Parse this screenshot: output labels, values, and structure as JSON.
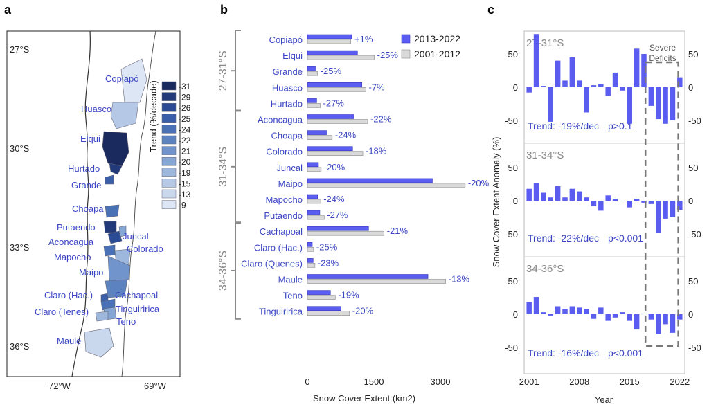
{
  "panels": {
    "a": "a",
    "b": "b",
    "c": "c"
  },
  "colors": {
    "bar_recent": "#5b5cf0",
    "bar_recent_stroke": "#3a3bc0",
    "bar_early": "#d9d9d9",
    "bar_early_stroke": "#8a8a8a",
    "label_blue": "#3b46c4",
    "bracket": "#8a8a8a",
    "map_ocean": "#ffffff"
  },
  "map": {
    "lat_labels": [
      "27°S",
      "30°S",
      "33°S",
      "36°S"
    ],
    "lon_labels": [
      "72°W",
      "69°W"
    ],
    "basins": [
      {
        "name": "Copiapó",
        "trend": -9
      },
      {
        "name": "Huasco",
        "trend": -15
      },
      {
        "name": "Elqui",
        "trend": -31
      },
      {
        "name": "Hurtado",
        "trend": -29
      },
      {
        "name": "Grande",
        "trend": -25
      },
      {
        "name": "Choapa",
        "trend": -24
      },
      {
        "name": "Putaendo",
        "trend": -29
      },
      {
        "name": "Aconcagua",
        "trend": -26
      },
      {
        "name": "Juncal",
        "trend": -20
      },
      {
        "name": "Colorado",
        "trend": -19
      },
      {
        "name": "Mapocho",
        "trend": -24
      },
      {
        "name": "Maipo",
        "trend": -21
      },
      {
        "name": "Claro (Hac.)",
        "trend": -25
      },
      {
        "name": "Cachapoal",
        "trend": -22
      },
      {
        "name": "Claro (Tenes)",
        "trend": -23
      },
      {
        "name": "Tinguiririca",
        "trend": -20
      },
      {
        "name": "Teno",
        "trend": -19
      },
      {
        "name": "Maule",
        "trend": -13
      }
    ],
    "legend": {
      "title": "Trend (%/decade)",
      "entries": [
        {
          "label": "-31",
          "color": "#1b2a5e"
        },
        {
          "label": "-29",
          "color": "#223a7a"
        },
        {
          "label": "-26",
          "color": "#2b4c95"
        },
        {
          "label": "-25",
          "color": "#3a5ea8"
        },
        {
          "label": "-24",
          "color": "#4a70b5"
        },
        {
          "label": "-22",
          "color": "#5c82c0"
        },
        {
          "label": "-21",
          "color": "#7094cb"
        },
        {
          "label": "-20",
          "color": "#86a6d4"
        },
        {
          "label": "-19",
          "color": "#9db7dd"
        },
        {
          "label": "-15",
          "color": "#b5c8e6"
        },
        {
          "label": "-13",
          "color": "#cad8ee"
        },
        {
          "label": "-9",
          "color": "#dde6f5"
        }
      ]
    }
  },
  "chart_data": [
    {
      "type": "bar",
      "orientation": "horizontal",
      "xlabel": "Snow Cover Extent (km2)",
      "xticks": [
        "0",
        "1500",
        "3000"
      ],
      "xlim": [
        0,
        3900
      ],
      "legend": [
        "2013-2022",
        "2001-2012"
      ],
      "groups": [
        {
          "label": "27-31°S",
          "basins": [
            {
              "name": "Copiapó",
              "recent": 1000,
              "early": 980,
              "change": "+1%"
            },
            {
              "name": "Elqui",
              "recent": 1130,
              "early": 1510,
              "change": "-25%"
            },
            {
              "name": "Grande",
              "recent": 180,
              "early": 230,
              "change": "-25%"
            },
            {
              "name": "Huasco",
              "recent": 1230,
              "early": 1320,
              "change": "-7%"
            },
            {
              "name": "Hurtado",
              "recent": 210,
              "early": 290,
              "change": "-27%"
            }
          ]
        },
        {
          "label": "31-34°S",
          "basins": [
            {
              "name": "Aconcagua",
              "recent": 1050,
              "early": 1360,
              "change": "-22%"
            },
            {
              "name": "Choapa",
              "recent": 430,
              "early": 560,
              "change": "-24%"
            },
            {
              "name": "Colorado",
              "recent": 1020,
              "early": 1250,
              "change": "-18%"
            },
            {
              "name": "Juncal",
              "recent": 250,
              "early": 310,
              "change": "-20%"
            },
            {
              "name": "Maipo",
              "recent": 2820,
              "early": 3560,
              "change": "-20%"
            },
            {
              "name": "Mapocho",
              "recent": 230,
              "early": 300,
              "change": "-24%"
            },
            {
              "name": "Putaendo",
              "recent": 280,
              "early": 380,
              "change": "-27%"
            }
          ]
        },
        {
          "label": "34-36°S",
          "basins": [
            {
              "name": "Cachapoal",
              "recent": 1380,
              "early": 1730,
              "change": "-21%"
            },
            {
              "name": "Claro (Hac.)",
              "recent": 110,
              "early": 140,
              "change": "-25%"
            },
            {
              "name": "Claro (Quenes)",
              "recent": 130,
              "early": 170,
              "change": "-23%"
            },
            {
              "name": "Maule",
              "recent": 2720,
              "early": 3120,
              "change": "-13%"
            },
            {
              "name": "Teno",
              "recent": 520,
              "early": 630,
              "change": "-19%"
            },
            {
              "name": "Tinguiririca",
              "recent": 760,
              "early": 950,
              "change": "-20%"
            }
          ]
        }
      ]
    },
    {
      "type": "bar",
      "ylabel": "Snow Cover Extent Anomaly (%)",
      "xlabel": "Year",
      "xticks": [
        "2001",
        "2008",
        "2015",
        "2022"
      ],
      "years": [
        2001,
        2002,
        2003,
        2004,
        2005,
        2006,
        2007,
        2008,
        2009,
        2010,
        2011,
        2012,
        2013,
        2014,
        2015,
        2016,
        2017,
        2018,
        2019,
        2020,
        2021,
        2022
      ],
      "ylim": [
        -80,
        80
      ],
      "yticks_left": [
        "50",
        "0",
        "-50"
      ],
      "yticks_right": [
        "50",
        "0",
        "-50"
      ],
      "annotation": "Severe Deficits",
      "annotation_years": [
        2018,
        2021
      ],
      "series": [
        {
          "name": "27-31°S",
          "trend": "Trend: -19%/dec",
          "p": "p>0.1",
          "values": [
            -8,
            80,
            2,
            -52,
            40,
            10,
            45,
            10,
            -38,
            3,
            5,
            -13,
            22,
            -5,
            -55,
            58,
            50,
            -28,
            -48,
            -55,
            -50,
            15
          ]
        },
        {
          "name": "31-34°S",
          "trend": "Trend: -22%/dec",
          "p": "p<0.001",
          "values": [
            18,
            27,
            12,
            5,
            22,
            5,
            18,
            14,
            5,
            -8,
            -15,
            8,
            3,
            0,
            -10,
            3,
            -3,
            -5,
            -48,
            -27,
            -25,
            -14
          ]
        },
        {
          "name": "34-36°S",
          "trend": "Trend: -16%/dec",
          "p": "p<0.001",
          "values": [
            18,
            26,
            3,
            -2,
            12,
            8,
            12,
            10,
            8,
            -7,
            10,
            -10,
            -5,
            3,
            -10,
            -23,
            1,
            -8,
            -30,
            -15,
            -28,
            -8
          ]
        }
      ]
    }
  ]
}
